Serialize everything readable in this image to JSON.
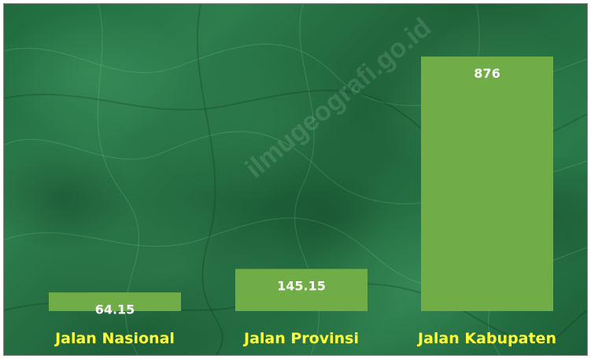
{
  "chart_data": {
    "type": "bar",
    "categories": [
      "Jalan Nasional",
      "Jalan Provinsi",
      "Jalan Kabupaten"
    ],
    "values": [
      64.15,
      145.15,
      876
    ],
    "value_labels": [
      "64.15",
      "145.15",
      "876"
    ],
    "title": "",
    "xlabel": "",
    "ylabel": "",
    "ylim": [
      0,
      876
    ],
    "grid": false,
    "legend": "none",
    "colors": {
      "bar": "#70ad47",
      "value_label": "#ffffff",
      "category_label": "#ffff33"
    }
  },
  "watermark": "ilmugeografi.go.id"
}
